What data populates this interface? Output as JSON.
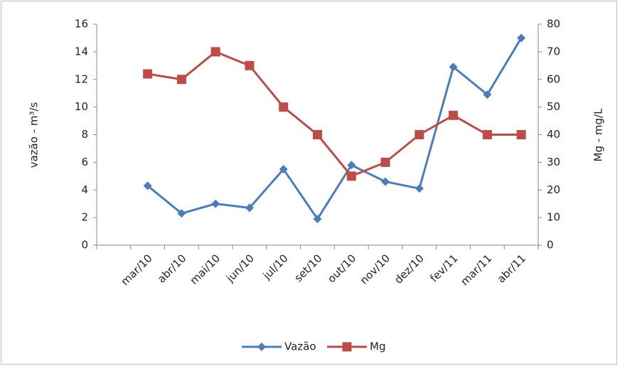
{
  "chart_data": {
    "type": "line",
    "categories": [
      null,
      "mar/10",
      "abr/10",
      "mai/10",
      "jun/10",
      "jul/10",
      "set/10",
      "out/10",
      "nov/10",
      "dez/10",
      "fev/11",
      "mar/11",
      "abr/11"
    ],
    "series": [
      {
        "name": "Vazão",
        "color": "#4a7ebb",
        "marker": "diamond",
        "values": [
          null,
          4.3,
          2.3,
          3.0,
          2.7,
          5.5,
          1.9,
          5.8,
          4.6,
          4.1,
          12.9,
          10.9,
          15.0
        ]
      },
      {
        "name": "Mg",
        "color": "#be4b48",
        "marker": "square",
        "axis": "y2",
        "values": [
          null,
          62,
          60,
          70,
          65,
          50,
          40,
          25,
          30,
          40,
          47,
          40,
          40
        ]
      }
    ],
    "y_label": "vazão - m³/s",
    "y2_label": "Mg - mg/L",
    "ylim": [
      0,
      16
    ],
    "yticks": [
      0,
      2,
      4,
      6,
      8,
      10,
      12,
      14,
      16
    ],
    "y2lim": [
      0,
      80
    ],
    "y2ticks": [
      0,
      10,
      20,
      30,
      40,
      50,
      60,
      70,
      80
    ],
    "grid": false,
    "legend": "bottom"
  }
}
